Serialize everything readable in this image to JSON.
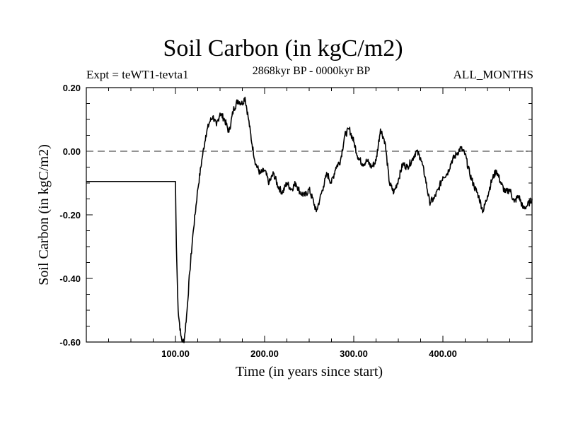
{
  "chart_data": {
    "type": "line",
    "title": "Soil Carbon (in kgC/m2)",
    "subtitle": "2868kyr BP - 0000kyr BP",
    "experiment": "Expt = teWT1-tevta1",
    "months_label": "ALL_MONTHS",
    "xlabel": "Time (in years since start)",
    "ylabel": "Soil Carbon (in kgC/m2)",
    "xlim": [
      0,
      500
    ],
    "ylim": [
      -0.6,
      0.2
    ],
    "x_ticks": [
      100,
      200,
      300,
      400
    ],
    "x_tick_labels": [
      "100.00",
      "200.00",
      "300.00",
      "400.00"
    ],
    "y_ticks": [
      0.2,
      0.0,
      -0.2,
      -0.4,
      -0.6
    ],
    "y_tick_labels": [
      "0.20",
      "0.00",
      "-0.20",
      "-0.40",
      "-0.60"
    ],
    "reference_line": 0.0,
    "series": [
      {
        "name": "Soil Carbon",
        "x": [
          0,
          100,
          101,
          103,
          106,
          108,
          110,
          113,
          116,
          120,
          125,
          130,
          134,
          138,
          142,
          146,
          150,
          155,
          160,
          165,
          170,
          175,
          178,
          182,
          186,
          190,
          195,
          200,
          205,
          210,
          215,
          220,
          225,
          230,
          235,
          240,
          245,
          250,
          255,
          258,
          262,
          266,
          270,
          275,
          280,
          285,
          290,
          295,
          300,
          305,
          310,
          315,
          320,
          325,
          330,
          335,
          340,
          345,
          350,
          355,
          360,
          365,
          370,
          375,
          380,
          385,
          390,
          395,
          400,
          405,
          410,
          415,
          420,
          425,
          430,
          435,
          440,
          445,
          450,
          455,
          460,
          465,
          470,
          475,
          480,
          485,
          490,
          495,
          500
        ],
        "y": [
          -0.095,
          -0.095,
          -0.3,
          -0.5,
          -0.58,
          -0.6,
          -0.59,
          -0.5,
          -0.38,
          -0.25,
          -0.12,
          -0.02,
          0.05,
          0.09,
          0.11,
          0.08,
          0.12,
          0.1,
          0.06,
          0.13,
          0.16,
          0.15,
          0.17,
          0.1,
          0.02,
          -0.04,
          -0.07,
          -0.06,
          -0.1,
          -0.07,
          -0.11,
          -0.13,
          -0.1,
          -0.12,
          -0.1,
          -0.13,
          -0.14,
          -0.12,
          -0.16,
          -0.19,
          -0.15,
          -0.11,
          -0.07,
          -0.1,
          -0.05,
          -0.03,
          0.05,
          0.07,
          0.03,
          -0.02,
          -0.04,
          -0.03,
          -0.05,
          -0.03,
          0.07,
          0.03,
          -0.1,
          -0.13,
          -0.09,
          -0.04,
          -0.05,
          -0.03,
          0.0,
          -0.02,
          -0.08,
          -0.16,
          -0.15,
          -0.12,
          -0.08,
          -0.07,
          -0.03,
          -0.01,
          0.01,
          -0.01,
          -0.07,
          -0.11,
          -0.14,
          -0.19,
          -0.14,
          -0.09,
          -0.06,
          -0.1,
          -0.13,
          -0.12,
          -0.16,
          -0.14,
          -0.18,
          -0.17,
          -0.15
        ]
      }
    ]
  }
}
